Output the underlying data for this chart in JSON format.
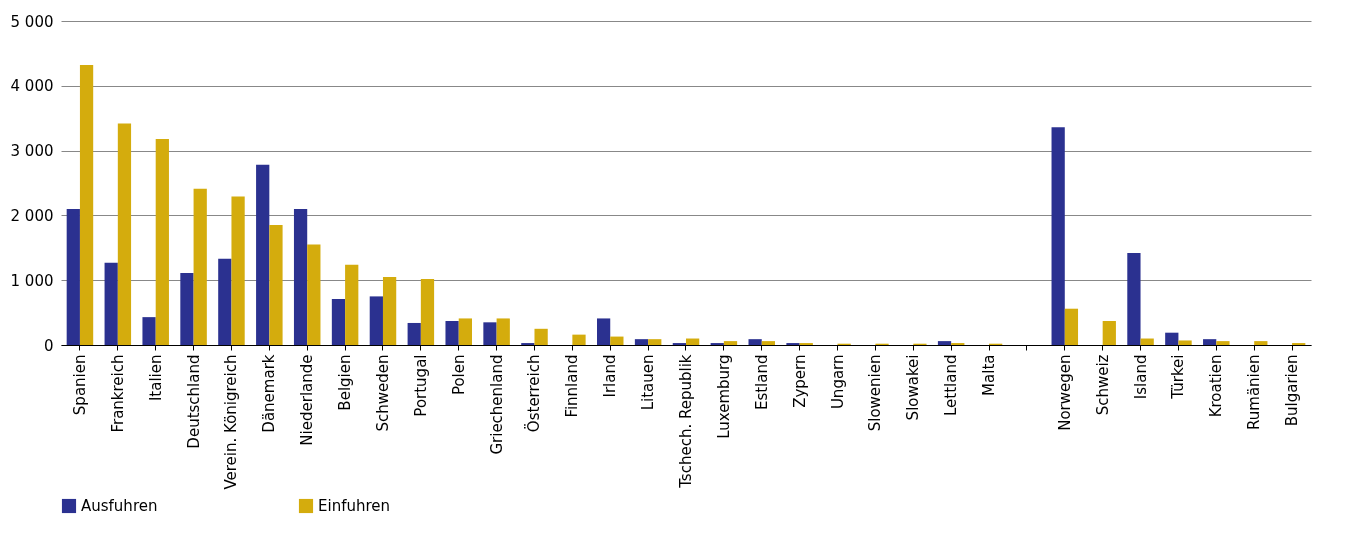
{
  "chart_data": {
    "type": "bar",
    "categories": [
      "Spanien",
      "Frankreich",
      "Italien",
      "Deutschland",
      "Verein. Königreich",
      "Dänemark",
      "Niederlande",
      "Belgien",
      "Schweden",
      "Portugal",
      "Polen",
      "Griechenland",
      "Österreich",
      "Finnland",
      "Irland",
      "Litauen",
      "Tschech. Republik",
      "Luxemburg",
      "Estland",
      "Zypern",
      "Ungarn",
      "Slowenien",
      "Slowakei",
      "Lettland",
      "Malta",
      null,
      "Norwegen",
      "Schweiz",
      "Island",
      "Türkei",
      "Kroatien",
      "Rumänien",
      "Bulgarien"
    ],
    "series": [
      {
        "name": "Ausfuhren",
        "color": "#2b3190",
        "values": [
          2100,
          1270,
          430,
          1110,
          1330,
          2780,
          2100,
          710,
          750,
          340,
          370,
          350,
          30,
          0,
          410,
          90,
          30,
          30,
          90,
          30,
          0,
          0,
          0,
          60,
          0,
          null,
          3360,
          0,
          1420,
          190,
          90,
          0,
          0
        ]
      },
      {
        "name": "Einfuhren",
        "color": "#d4ac0d",
        "values": [
          4320,
          3420,
          3180,
          2410,
          2290,
          1850,
          1550,
          1240,
          1050,
          1020,
          410,
          410,
          250,
          160,
          130,
          90,
          100,
          60,
          60,
          30,
          20,
          20,
          20,
          30,
          20,
          null,
          560,
          370,
          100,
          70,
          60,
          60,
          30
        ]
      }
    ],
    "ylim": [
      0,
      5000
    ],
    "yticks": [
      0,
      {
        "value": 1000,
        "label": "1 000"
      },
      {
        "value": 2000,
        "label": "2 000"
      },
      {
        "value": 3000,
        "label": "3 000"
      },
      {
        "value": 4000,
        "label": "4 000"
      },
      {
        "value": 5000,
        "label": "5 000"
      }
    ],
    "grid": "y",
    "legend": "bottom"
  }
}
